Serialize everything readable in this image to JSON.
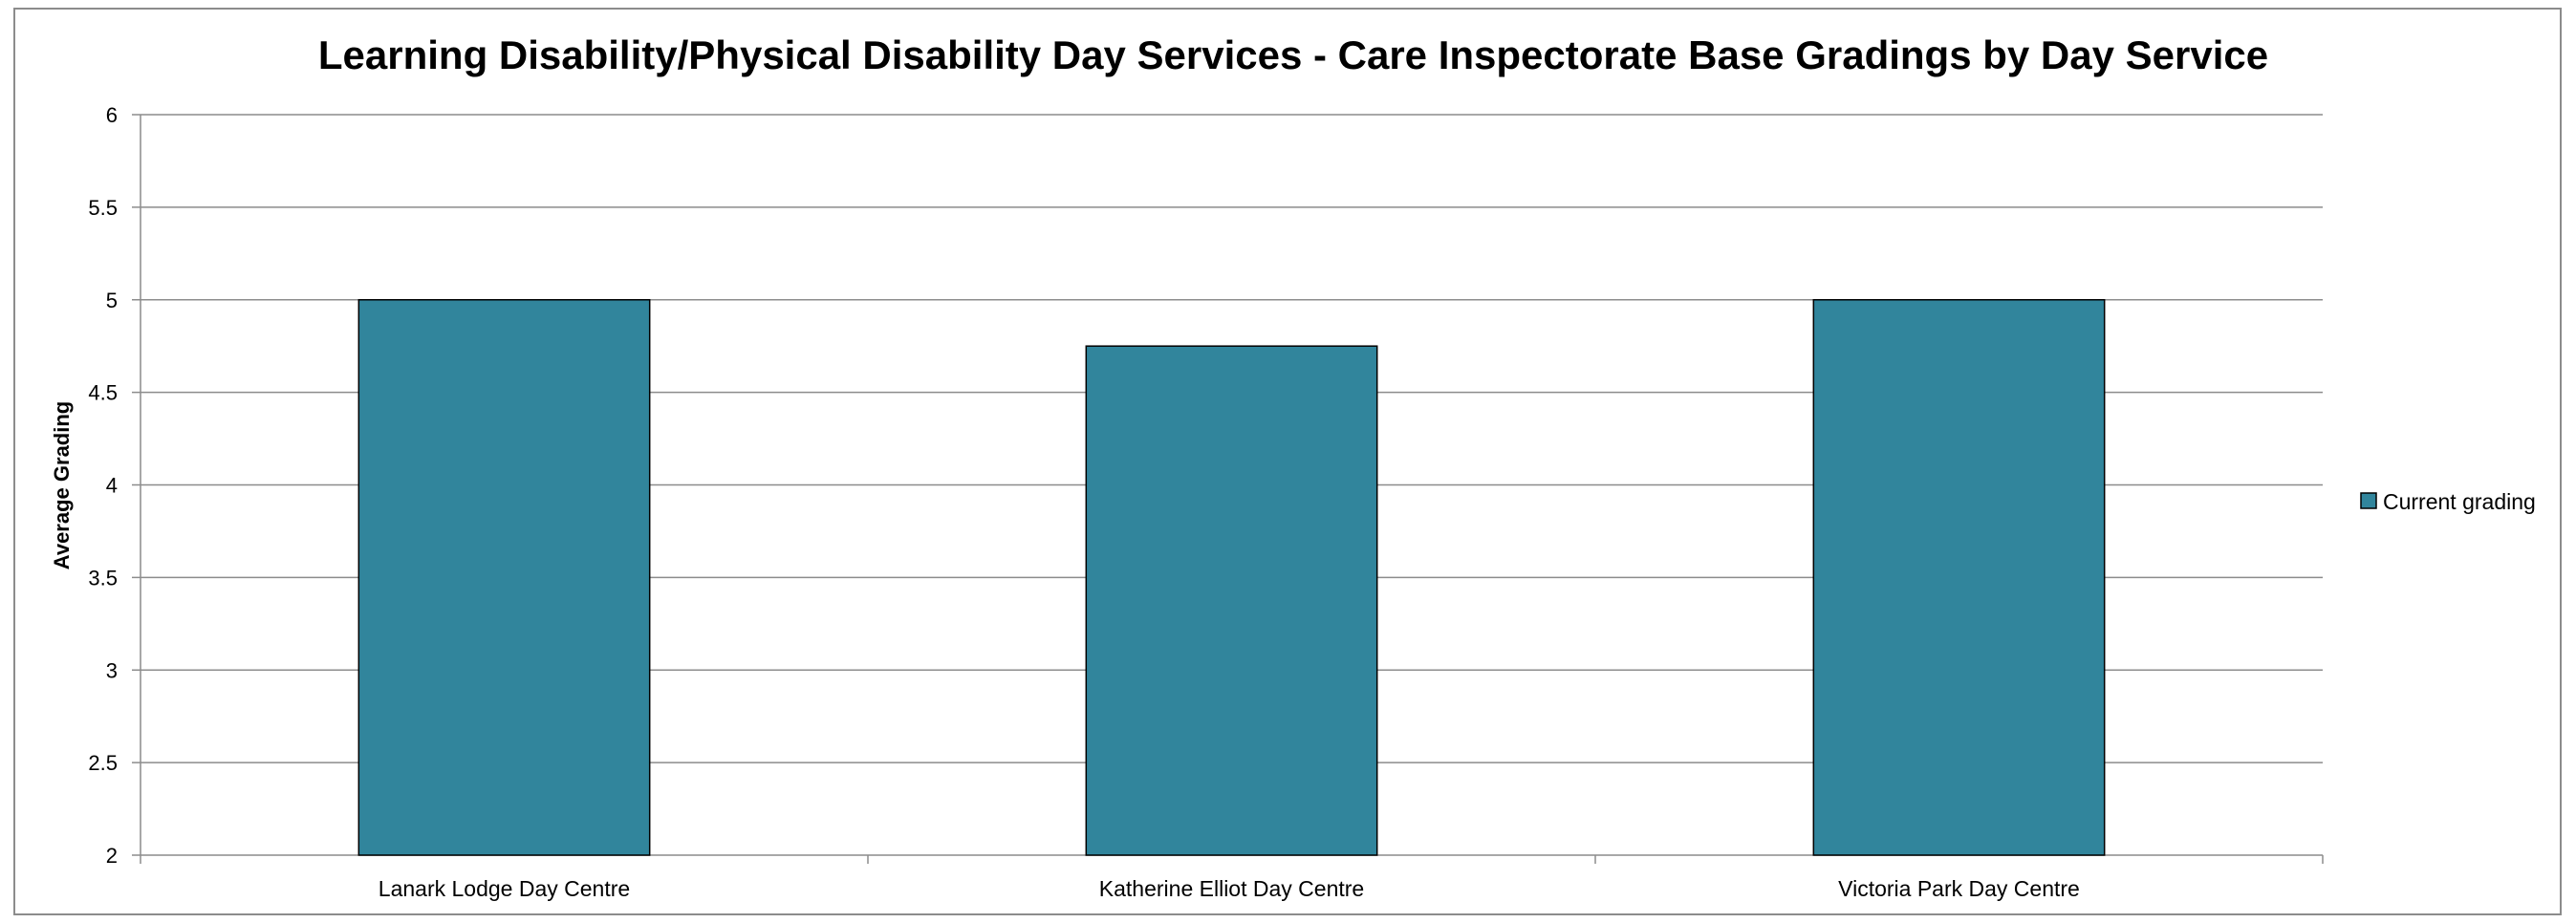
{
  "chart_data": {
    "type": "bar",
    "title": "Learning Disability/Physical Disability Day Services - Care Inspectorate Base Gradings by Day Service",
    "xlabel": "",
    "ylabel": "Average Grading",
    "categories": [
      "Lanark Lodge Day Centre",
      "Katherine Elliot Day Centre",
      "Victoria Park Day Centre"
    ],
    "series": [
      {
        "name": "Current grading",
        "values": [
          5,
          4.75,
          5
        ],
        "color": "#31859c"
      }
    ],
    "ylim": [
      2,
      6
    ],
    "yticks": [
      "2",
      "2.5",
      "3",
      "3.5",
      "4",
      "4.5",
      "5",
      "5.5",
      "6"
    ],
    "grid": true,
    "legend_position": "right"
  }
}
